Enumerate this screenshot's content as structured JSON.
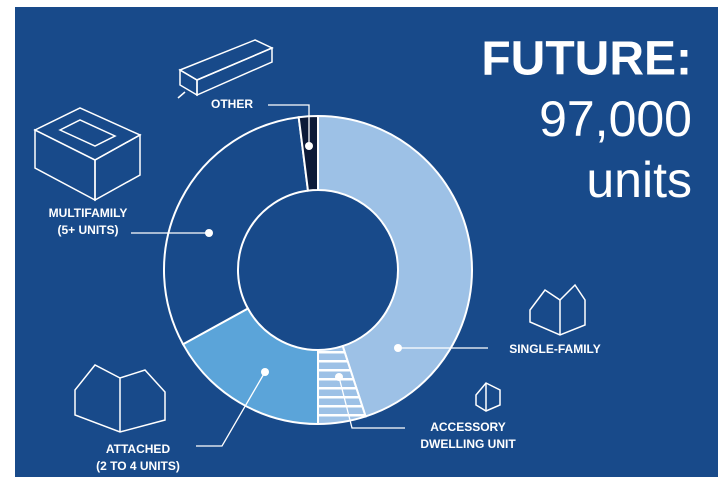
{
  "chart_data": {
    "type": "donut",
    "title": [
      "FUTURE:",
      "97,000",
      "units"
    ],
    "categories": [
      [
        "SINGLE-FAMILY"
      ],
      [
        "ACCESSORY",
        "DWELLING UNIT"
      ],
      [
        "ATTACHED",
        "(2 TO 4 UNITS)"
      ],
      [
        "MULTIFAMILY",
        "(5+ UNITS)"
      ],
      [
        "OTHER"
      ]
    ],
    "values": [
      45,
      5,
      17,
      31,
      2
    ],
    "colors": [
      "#9dc1e6",
      "#9dc1e6",
      "#5ba4d9",
      "#184a8a",
      "#0c1a38"
    ],
    "hatched": [
      false,
      true,
      false,
      false,
      false
    ]
  }
}
